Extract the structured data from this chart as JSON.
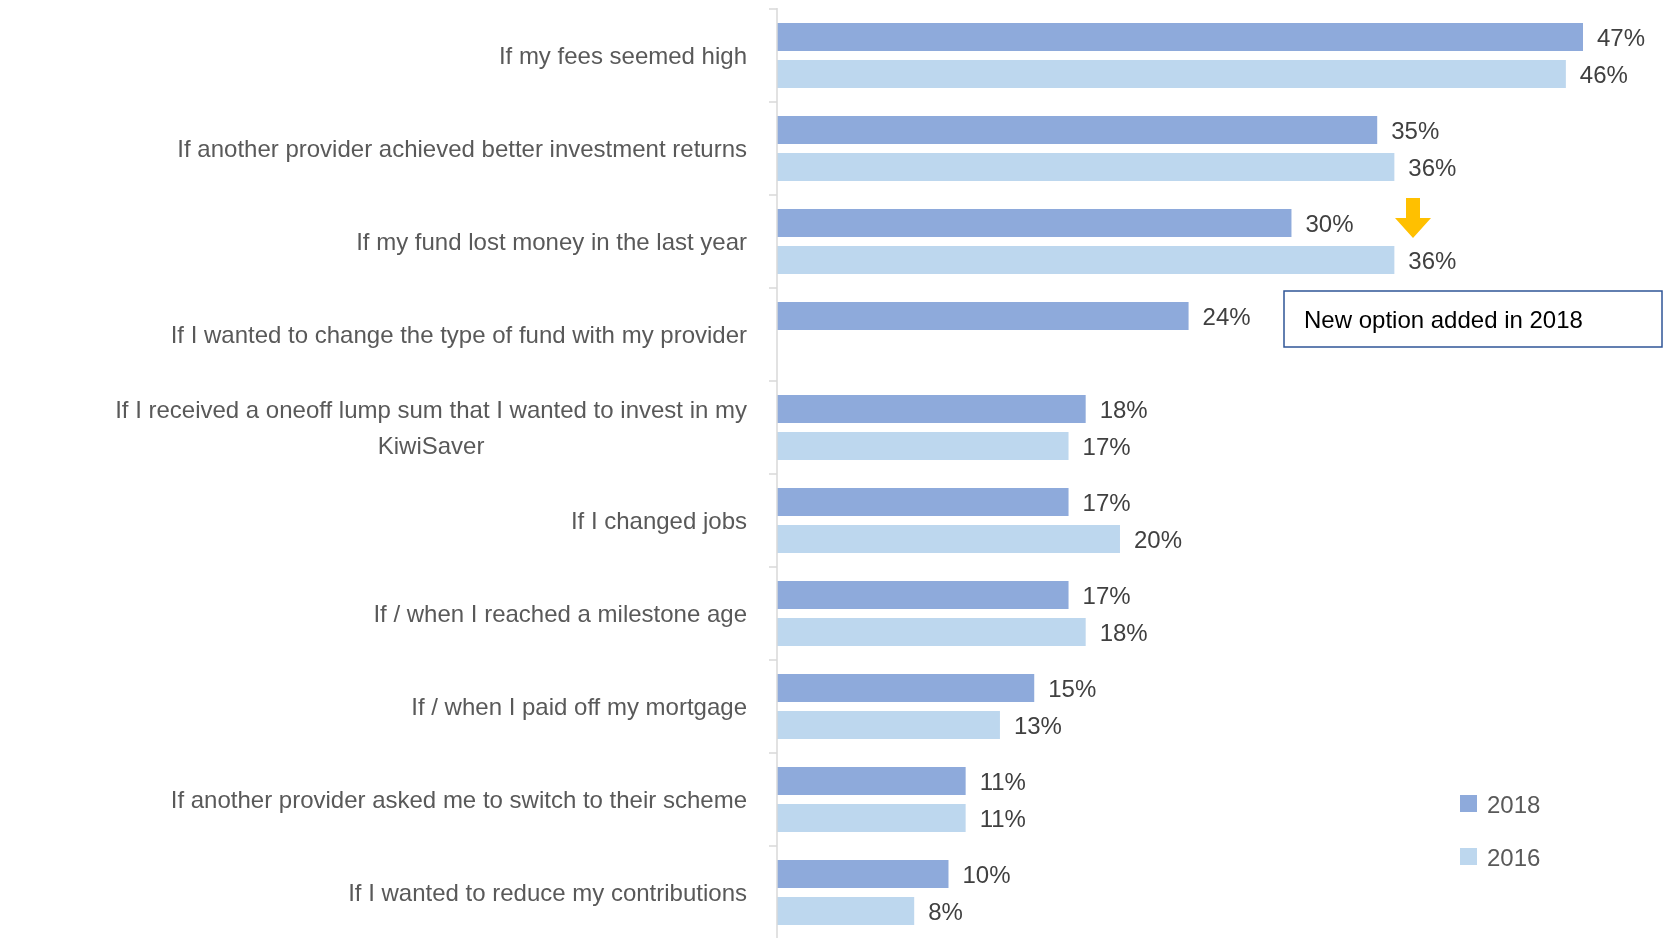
{
  "chart_data": {
    "type": "bar",
    "orientation": "horizontal",
    "categories": [
      "If my fees seemed high",
      "If another provider achieved better investment returns",
      "If my fund lost money in the last year",
      "If I wanted to change the type of fund with my provider",
      "If I received a oneoff lump sum that I wanted to invest in my KiwiSaver",
      "If I changed jobs",
      "If / when I reached a milestone age",
      "If / when I paid off my mortgage",
      "If another provider asked me to switch to their scheme",
      "If I wanted to reduce my contributions"
    ],
    "series": [
      {
        "name": "2018",
        "color": "#8eaadb",
        "values": [
          47,
          35,
          30,
          24,
          18,
          17,
          17,
          15,
          11,
          10
        ],
        "value_labels": [
          "47%",
          "35%",
          "30%",
          "24%",
          "18%",
          "17%",
          "17%",
          "15%",
          "11%",
          "10%"
        ]
      },
      {
        "name": "2016",
        "color": "#bdd7ee",
        "values": [
          46,
          36,
          36,
          null,
          17,
          20,
          18,
          13,
          11,
          8
        ],
        "value_labels": [
          "46%",
          "36%",
          "36%",
          null,
          "17%",
          "20%",
          "18%",
          "13%",
          "11%",
          "8%"
        ]
      }
    ],
    "legend": "bottom right",
    "annotations": [
      "New option added in 2018"
    ]
  }
}
